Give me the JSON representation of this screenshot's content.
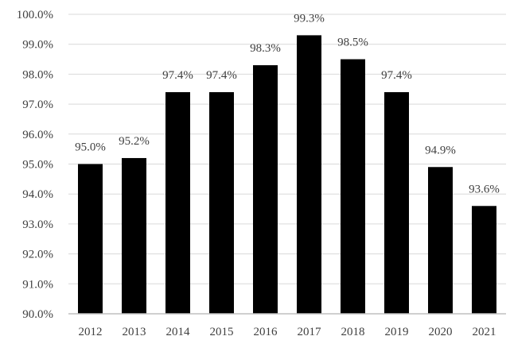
{
  "chart_data": {
    "type": "bar",
    "categories": [
      "2012",
      "2013",
      "2014",
      "2015",
      "2016",
      "2017",
      "2018",
      "2019",
      "2020",
      "2021"
    ],
    "values": [
      95.0,
      95.2,
      97.4,
      97.4,
      98.3,
      99.3,
      98.5,
      97.4,
      94.9,
      93.6
    ],
    "data_labels": [
      "95.0%",
      "95.2%",
      "97.4%",
      "97.4%",
      "98.3%",
      "99.3%",
      "98.5%",
      "97.4%",
      "94.9%",
      "93.6%"
    ],
    "y_ticks": [
      90,
      91,
      92,
      93,
      94,
      95,
      96,
      97,
      98,
      99,
      100
    ],
    "y_tick_labels": [
      "90.0%",
      "91.0%",
      "92.0%",
      "93.0%",
      "94.0%",
      "95.0%",
      "96.0%",
      "97.0%",
      "98.0%",
      "99.0%",
      "100.0%"
    ],
    "ylim": [
      90,
      100
    ],
    "title": "",
    "xlabel": "",
    "ylabel": "",
    "grid": "horizontal",
    "legend": "none",
    "bar_color": "#000000",
    "grid_color": "#d9d9d9"
  }
}
